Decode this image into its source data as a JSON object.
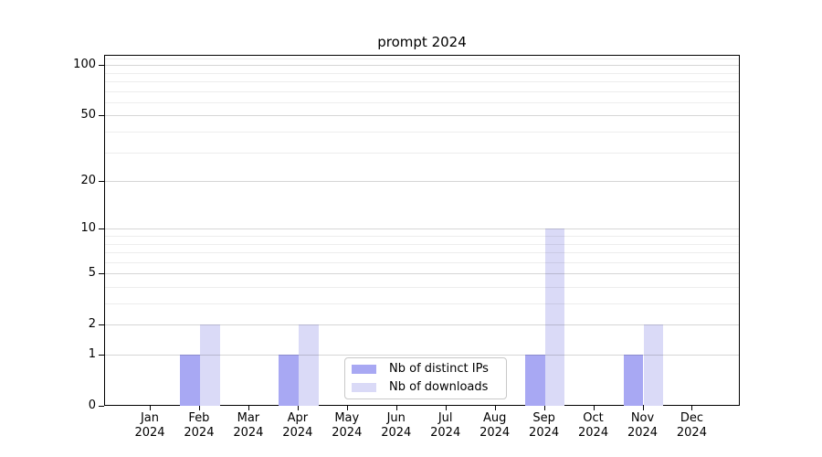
{
  "chart_data": {
    "type": "bar",
    "title": "prompt 2024",
    "categories": [
      "Jan",
      "Feb",
      "Mar",
      "Apr",
      "May",
      "Jun",
      "Jul",
      "Aug",
      "Sep",
      "Oct",
      "Nov",
      "Dec"
    ],
    "year_label": "2024",
    "series": [
      {
        "name": "Nb of distinct IPs",
        "color": "#a8a8f3",
        "values": [
          0,
          1,
          0,
          1,
          0,
          0,
          0,
          0,
          1,
          0,
          1,
          0
        ]
      },
      {
        "name": "Nb of downloads",
        "color": "#dadaf7",
        "values": [
          0,
          2,
          0,
          2,
          0,
          0,
          0,
          0,
          10,
          0,
          2,
          0
        ]
      }
    ],
    "xlabel": "",
    "ylabel": "",
    "yscale": "log1p",
    "ylim": [
      0,
      115
    ],
    "yticks": [
      0,
      1,
      2,
      5,
      10,
      20,
      50,
      100
    ],
    "minor_yticks": [
      3,
      4,
      6,
      7,
      8,
      9,
      30,
      40,
      60,
      70,
      80,
      90,
      110
    ],
    "grid": "horizontal",
    "legend_position": "lower-center"
  }
}
